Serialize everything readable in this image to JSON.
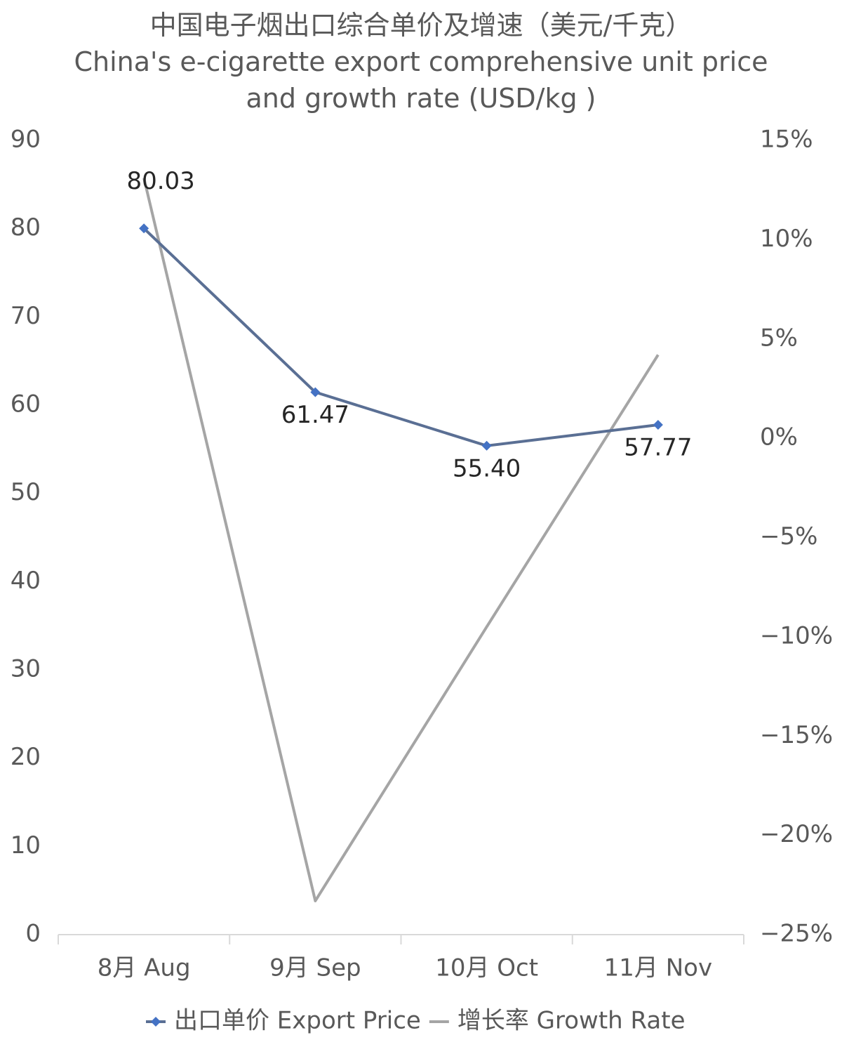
{
  "chart_data": {
    "type": "line",
    "title": "中国电子烟出口综合单价及增速（美元/千克）",
    "subtitle": "China's e-cigarette export comprehensive unit price and growth rate (USD/kg )",
    "categories": [
      "8月 Aug",
      "9月 Sep",
      "10月 Oct",
      "11月 Nov"
    ],
    "series": [
      {
        "name": "出口单价 Export Price",
        "color": "#5a6f94",
        "marker_color": "#4472c4",
        "values": [
          80.03,
          61.47,
          55.4,
          57.77
        ],
        "value_labels": [
          "80.03",
          "61.47",
          "55.40",
          "57.77"
        ]
      },
      {
        "name": "增长率 Growth Rate",
        "color": "#a5a5a5",
        "axis": "y2",
        "values": [
          13.1,
          -23.3,
          -9.5,
          4.2
        ]
      }
    ],
    "ylim": [
      0,
      90
    ],
    "yticks": [
      0,
      10,
      20,
      30,
      40,
      50,
      60,
      70,
      80,
      90
    ],
    "y2lim": [
      -25,
      15
    ],
    "y2ticks": [
      {
        "value": -25,
        "label": "−25%"
      },
      {
        "value": -20,
        "label": "−20%"
      },
      {
        "value": -15,
        "label": "−15%"
      },
      {
        "value": -10,
        "label": "−10%"
      },
      {
        "value": -5,
        "label": "−5%"
      },
      {
        "value": 0,
        "label": "0%"
      },
      {
        "value": 5,
        "label": "5%"
      },
      {
        "value": 10,
        "label": "10%"
      },
      {
        "value": 15,
        "label": "15%"
      }
    ],
    "grid": false,
    "legend": "bottom"
  }
}
